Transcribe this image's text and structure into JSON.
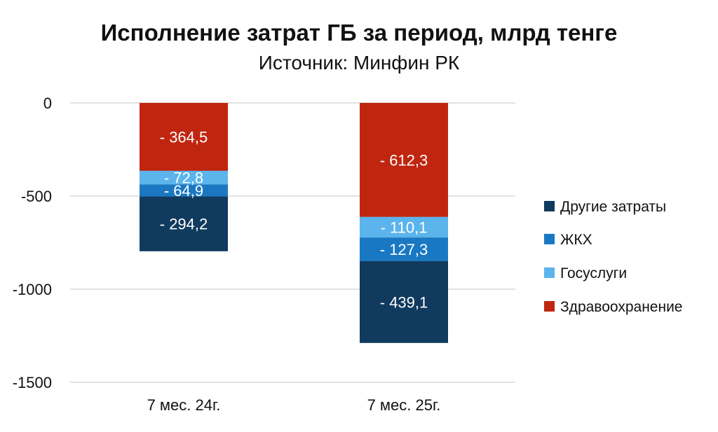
{
  "chart_data": {
    "type": "bar",
    "stacked": true,
    "title": "Исполнение затрат ГБ за период, млрд тенге",
    "subtitle": "Источник: Минфин РК",
    "categories": [
      "7 мес. 24г.",
      "7 мес. 25г."
    ],
    "ylim": [
      -1500,
      0
    ],
    "yticks": [
      0,
      -500,
      -1000,
      -1500
    ],
    "ytick_labels": [
      "0",
      "-500",
      "-1000",
      "-1500"
    ],
    "grid": true,
    "legend_position": "right",
    "series": [
      {
        "name": "Здравоохранение",
        "color": "#C0260F",
        "values": [
          -364.5,
          -612.3
        ],
        "labels": [
          "- 364,5",
          "- 612,3"
        ]
      },
      {
        "name": "Госуслуги",
        "color": "#5BB4EC",
        "values": [
          -72.8,
          -110.1
        ],
        "labels": [
          "- 72,8",
          "- 110,1"
        ]
      },
      {
        "name": "ЖКХ",
        "color": "#1A78C2",
        "values": [
          -64.9,
          -127.3
        ],
        "labels": [
          "- 64,9",
          "- 127,3"
        ]
      },
      {
        "name": "Другие затраты",
        "color": "#103A5E",
        "values": [
          -294.2,
          -439.1
        ],
        "labels": [
          "- 294,2",
          "- 439,1"
        ]
      }
    ],
    "legend_order": [
      "Другие затраты",
      "ЖКХ",
      "Госуслуги",
      "Здравоохранение"
    ]
  }
}
